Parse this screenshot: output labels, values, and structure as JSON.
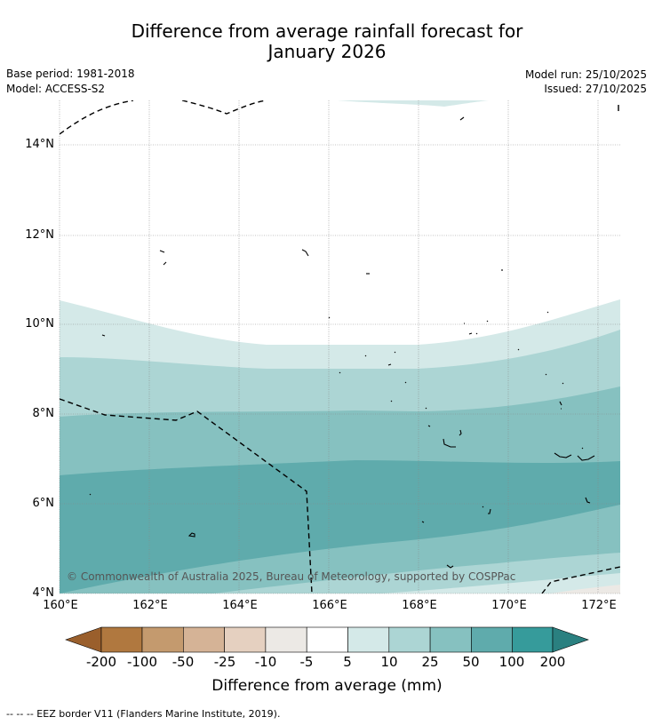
{
  "title_line1": "Difference from average rainfall forecast for",
  "title_line2": "January 2026",
  "base_period": "Base period: 1981-2018",
  "model": "Model: ACCESS-S2",
  "model_run": "Model run: 25/10/2025",
  "issued": "Issued: 27/10/2025",
  "copyright": "© Commonwealth of Australia 2025, Bureau of Meteorology, supported by COSPPac",
  "lat_labels": [
    "14°N",
    "12°N",
    "10°N",
    "8°N",
    "6°N",
    "4°N"
  ],
  "lon_labels": [
    "160°E",
    "162°E",
    "164°E",
    "166°E",
    "168°E",
    "170°E",
    "172°E"
  ],
  "colorbar": {
    "title": "Difference from average (mm)",
    "tick_labels": [
      "-200",
      "-100",
      "-50",
      "-25",
      "-10",
      "-5",
      "5",
      "10",
      "25",
      "50",
      "100",
      "200"
    ],
    "colors": [
      "#9a5f2c",
      "#b0783f",
      "#c49a6e",
      "#d5b396",
      "#e5d0c0",
      "#ece9e5",
      "#ffffff",
      "#d4e9e8",
      "#acd5d4",
      "#86c1c0",
      "#5fabac",
      "#369b9b",
      "#2a8080"
    ]
  },
  "footnote": "-- -- -- EEZ border V11 (Flanders Marine Institute, 2019)."
}
